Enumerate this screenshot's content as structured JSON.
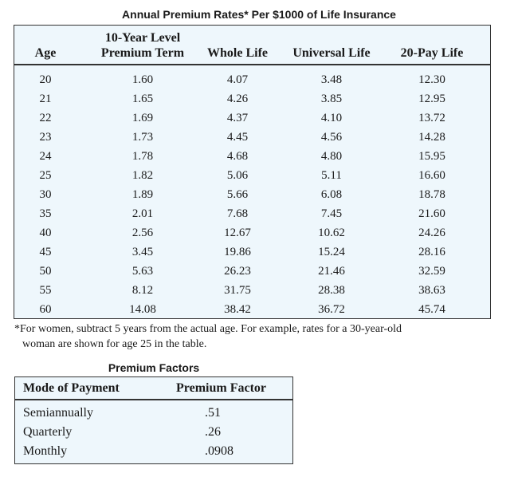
{
  "title": "Annual Premium Rates* Per $1000 of Life Insurance",
  "main_table": {
    "headers": {
      "age": "Age",
      "term_line1": "10-Year Level",
      "term_line2": "Premium Term",
      "whole": "Whole Life",
      "universal": "Universal Life",
      "pay20": "20-Pay Life"
    },
    "rows": [
      [
        "20",
        "1.60",
        "4.07",
        "3.48",
        "12.30"
      ],
      [
        "21",
        "1.65",
        "4.26",
        "3.85",
        "12.95"
      ],
      [
        "22",
        "1.69",
        "4.37",
        "4.10",
        "13.72"
      ],
      [
        "23",
        "1.73",
        "4.45",
        "4.56",
        "14.28"
      ],
      [
        "24",
        "1.78",
        "4.68",
        "4.80",
        "15.95"
      ],
      [
        "25",
        "1.82",
        "5.06",
        "5.11",
        "16.60"
      ],
      [
        "30",
        "1.89",
        "5.66",
        "6.08",
        "18.78"
      ],
      [
        "35",
        "2.01",
        "7.68",
        "7.45",
        "21.60"
      ],
      [
        "40",
        "2.56",
        "12.67",
        "10.62",
        "24.26"
      ],
      [
        "45",
        "3.45",
        "19.86",
        "15.24",
        "28.16"
      ],
      [
        "50",
        "5.63",
        "26.23",
        "21.46",
        "32.59"
      ],
      [
        "55",
        "8.12",
        "31.75",
        "28.38",
        "38.63"
      ],
      [
        "60",
        "14.08",
        "38.42",
        "36.72",
        "45.74"
      ]
    ]
  },
  "footnote": {
    "line1": "*For women, subtract 5 years from the actual age. For example, rates for a 30-year-old",
    "line2": "woman are shown for age 25 in the table."
  },
  "premium_factors": {
    "title": "Premium Factors",
    "headers": {
      "mode": "Mode of Payment",
      "factor": "Premium Factor"
    },
    "rows": [
      [
        "Semiannually",
        ".51"
      ],
      [
        "Quarterly",
        ".26"
      ],
      [
        "Monthly",
        ".0908"
      ]
    ]
  }
}
